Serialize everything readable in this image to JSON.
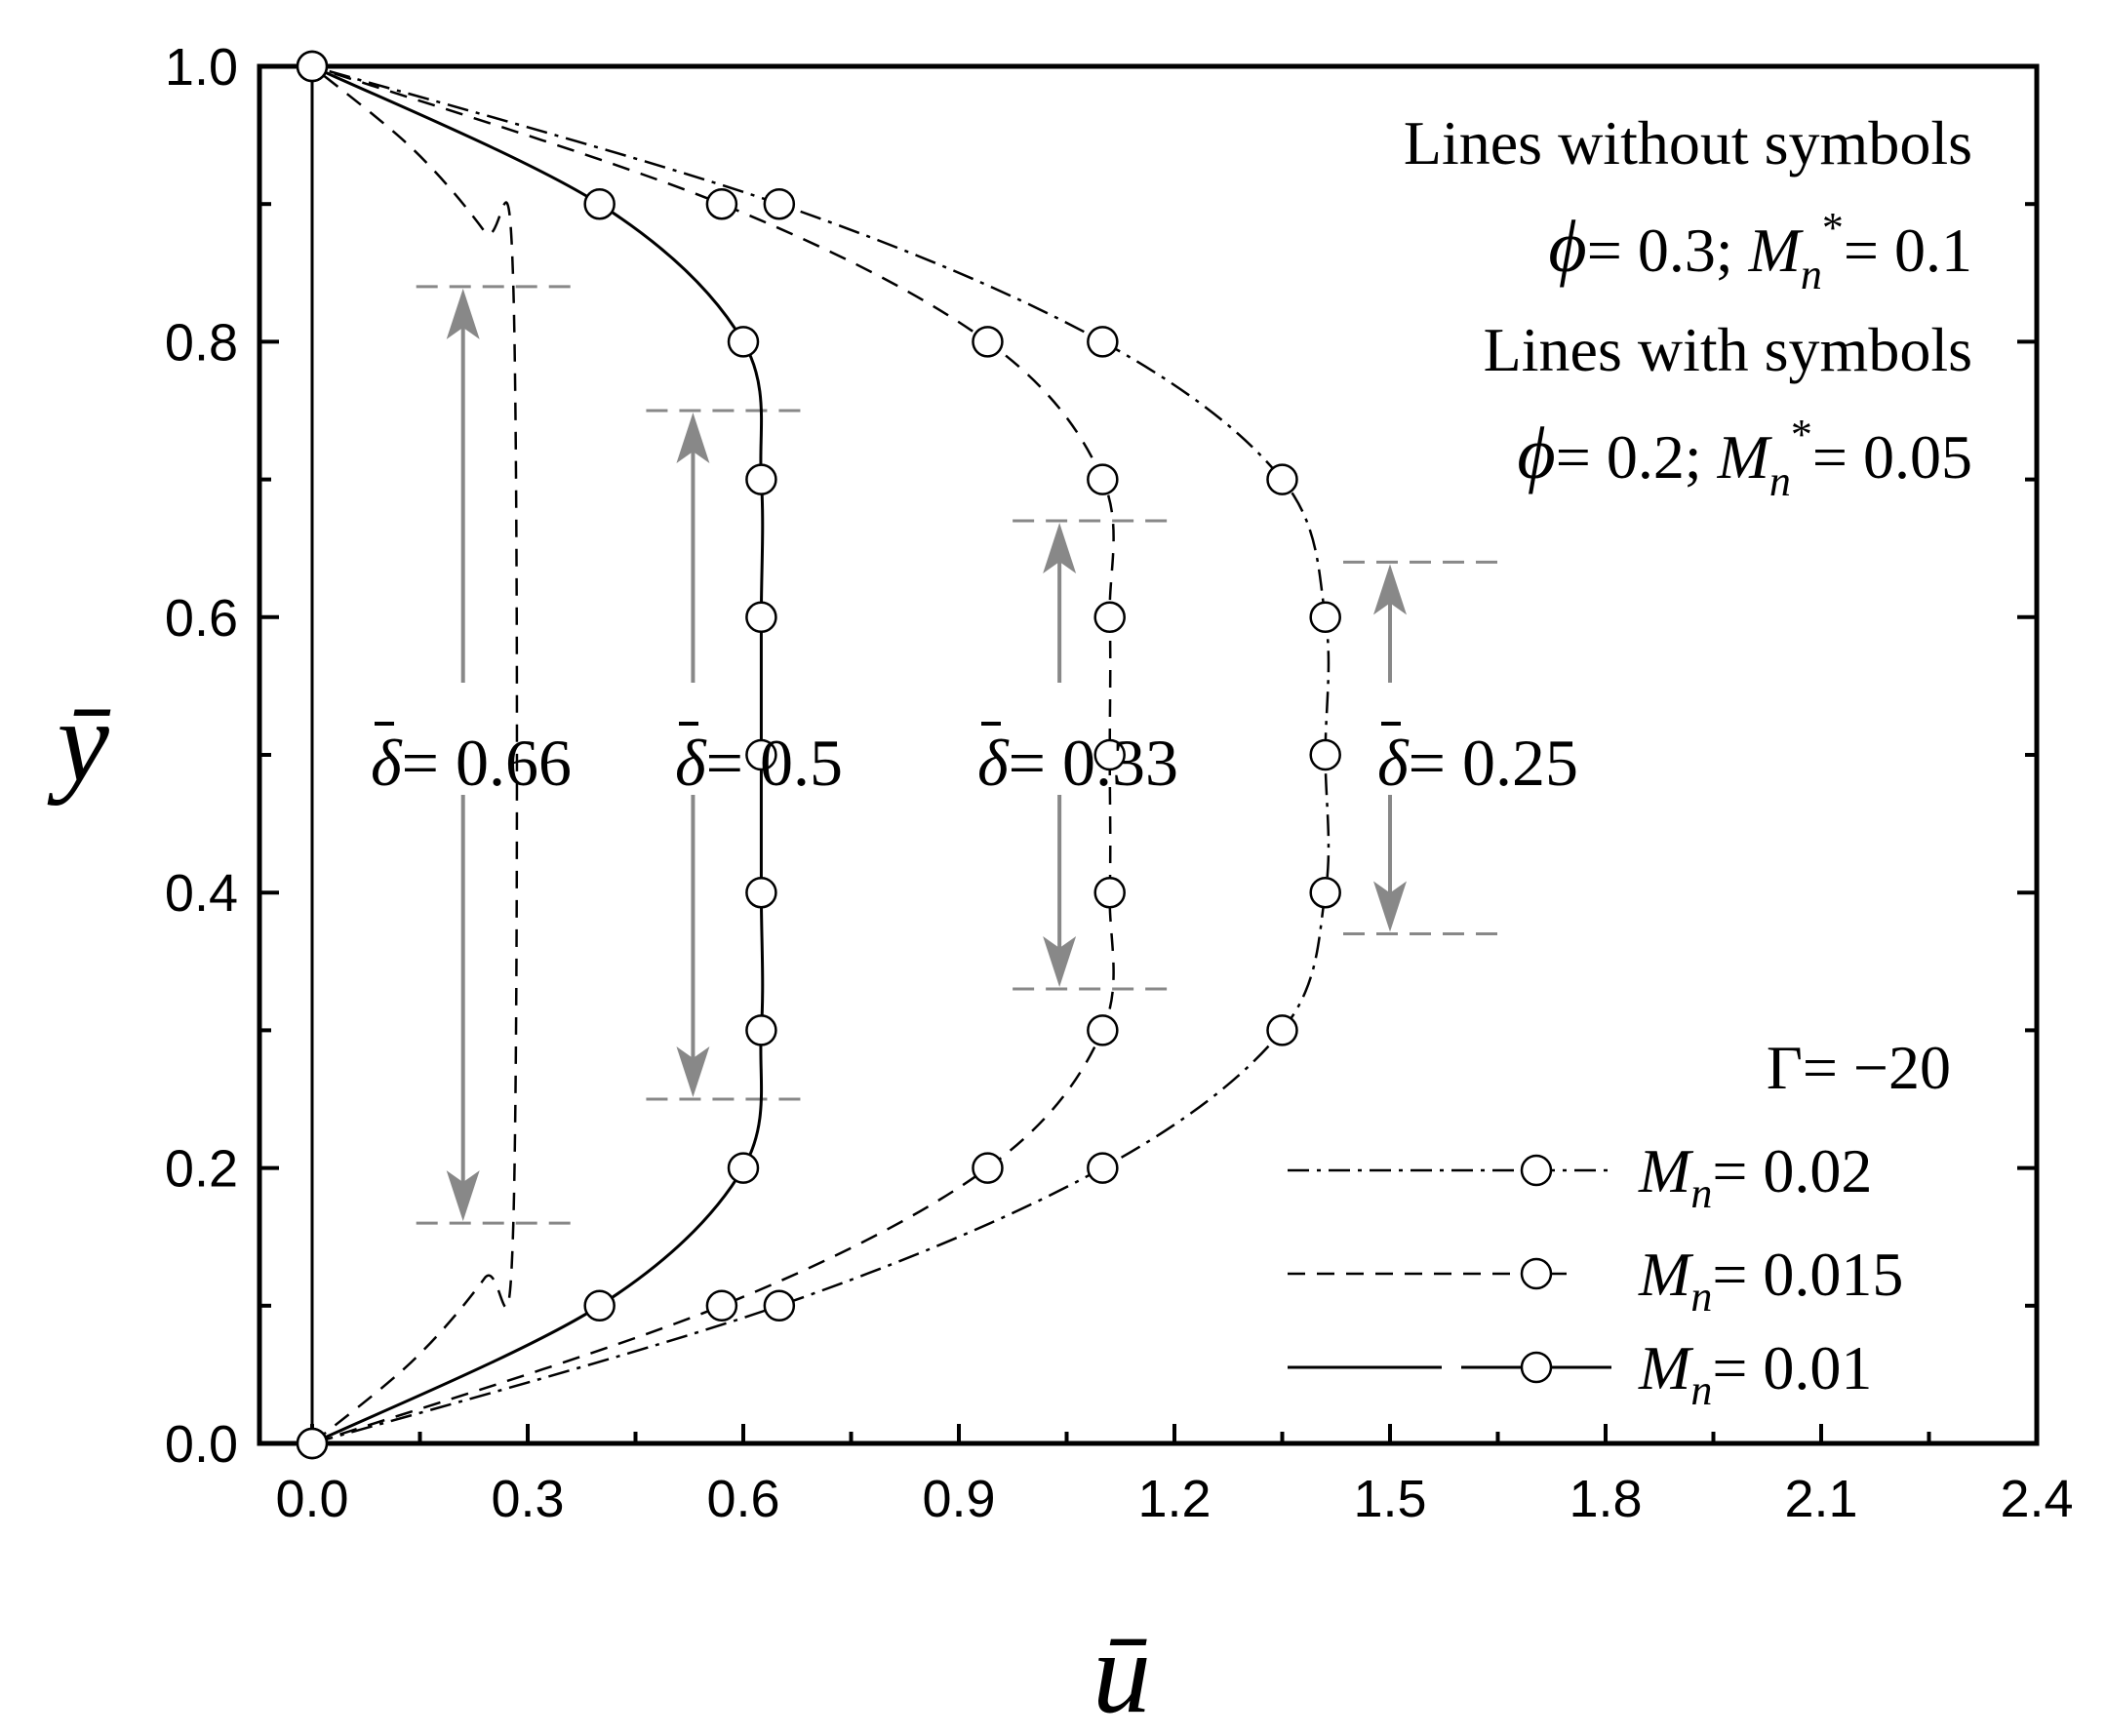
{
  "chart_data": {
    "type": "line",
    "xlabel": "ū",
    "ylabel": "ȳ",
    "xlim": [
      0,
      2.4
    ],
    "ylim": [
      0,
      1.0
    ],
    "x_ticks": [
      "0.0",
      "0.3",
      "0.6",
      "0.9",
      "1.2",
      "1.5",
      "1.8",
      "2.1",
      "2.4"
    ],
    "y_ticks": [
      "0.0",
      "0.2",
      "0.4",
      "0.6",
      "0.8",
      "1.0"
    ],
    "grid": false,
    "annotations": {
      "without_title": "Lines without symbols",
      "without_phi_value": "0.3",
      "without_mn_value": "0.1",
      "with_title": "Lines with symbols",
      "with_phi_value": "0.2",
      "with_mn_value": "0.05",
      "gamma": "Γ= −20",
      "legend": [
        {
          "style": "dash-dot",
          "label_value": "0.02"
        },
        {
          "style": "dashed",
          "label_value": "0.015"
        },
        {
          "style": "solid",
          "label_value": "0.01"
        }
      ],
      "delta_values": [
        "0.66",
        "0.5",
        "0.33",
        "0.25"
      ]
    },
    "plug_zones": [
      {
        "delta": "0.66",
        "x_marker": 0.21,
        "y_low": 0.16,
        "y_high": 0.84
      },
      {
        "delta": "0.5",
        "x_marker": 0.53,
        "y_low": 0.25,
        "y_high": 0.75
      },
      {
        "delta": "0.33",
        "x_marker": 1.04,
        "y_low": 0.33,
        "y_high": 0.67
      },
      {
        "delta": "0.25",
        "x_marker": 1.5,
        "y_low": 0.37,
        "y_high": 0.64
      }
    ],
    "series": [
      {
        "style": "dashed",
        "x": [
          0,
          0.14,
          0.24,
          0.28,
          0.28,
          0.24,
          0.14,
          0
        ],
        "y": [
          0,
          0.06,
          0.12,
          0.16,
          0.84,
          0.88,
          0.94,
          1.0
        ]
      },
      {
        "style": "solid",
        "markers": true,
        "x": [
          0,
          0.4,
          0.6,
          0.625,
          0.625,
          0.625,
          0.625,
          0.625,
          0.6,
          0.4,
          0
        ],
        "y": [
          0,
          0.1,
          0.2,
          0.3,
          0.4,
          0.5,
          0.6,
          0.7,
          0.8,
          0.9,
          1.0
        ]
      },
      {
        "style": "dashed",
        "markers": true,
        "x": [
          0,
          0.57,
          0.94,
          1.1,
          1.11,
          1.11,
          1.11,
          1.1,
          0.94,
          0.57,
          0
        ],
        "y": [
          0,
          0.1,
          0.2,
          0.3,
          0.4,
          0.5,
          0.6,
          0.7,
          0.8,
          0.9,
          1.0
        ]
      },
      {
        "style": "dash-dot",
        "markers": true,
        "x": [
          0,
          0.65,
          1.1,
          1.35,
          1.41,
          1.41,
          1.41,
          1.35,
          1.1,
          0.65,
          0
        ],
        "y": [
          0,
          0.1,
          0.2,
          0.3,
          0.4,
          0.5,
          0.6,
          0.7,
          0.8,
          0.9,
          1.0
        ]
      }
    ]
  }
}
